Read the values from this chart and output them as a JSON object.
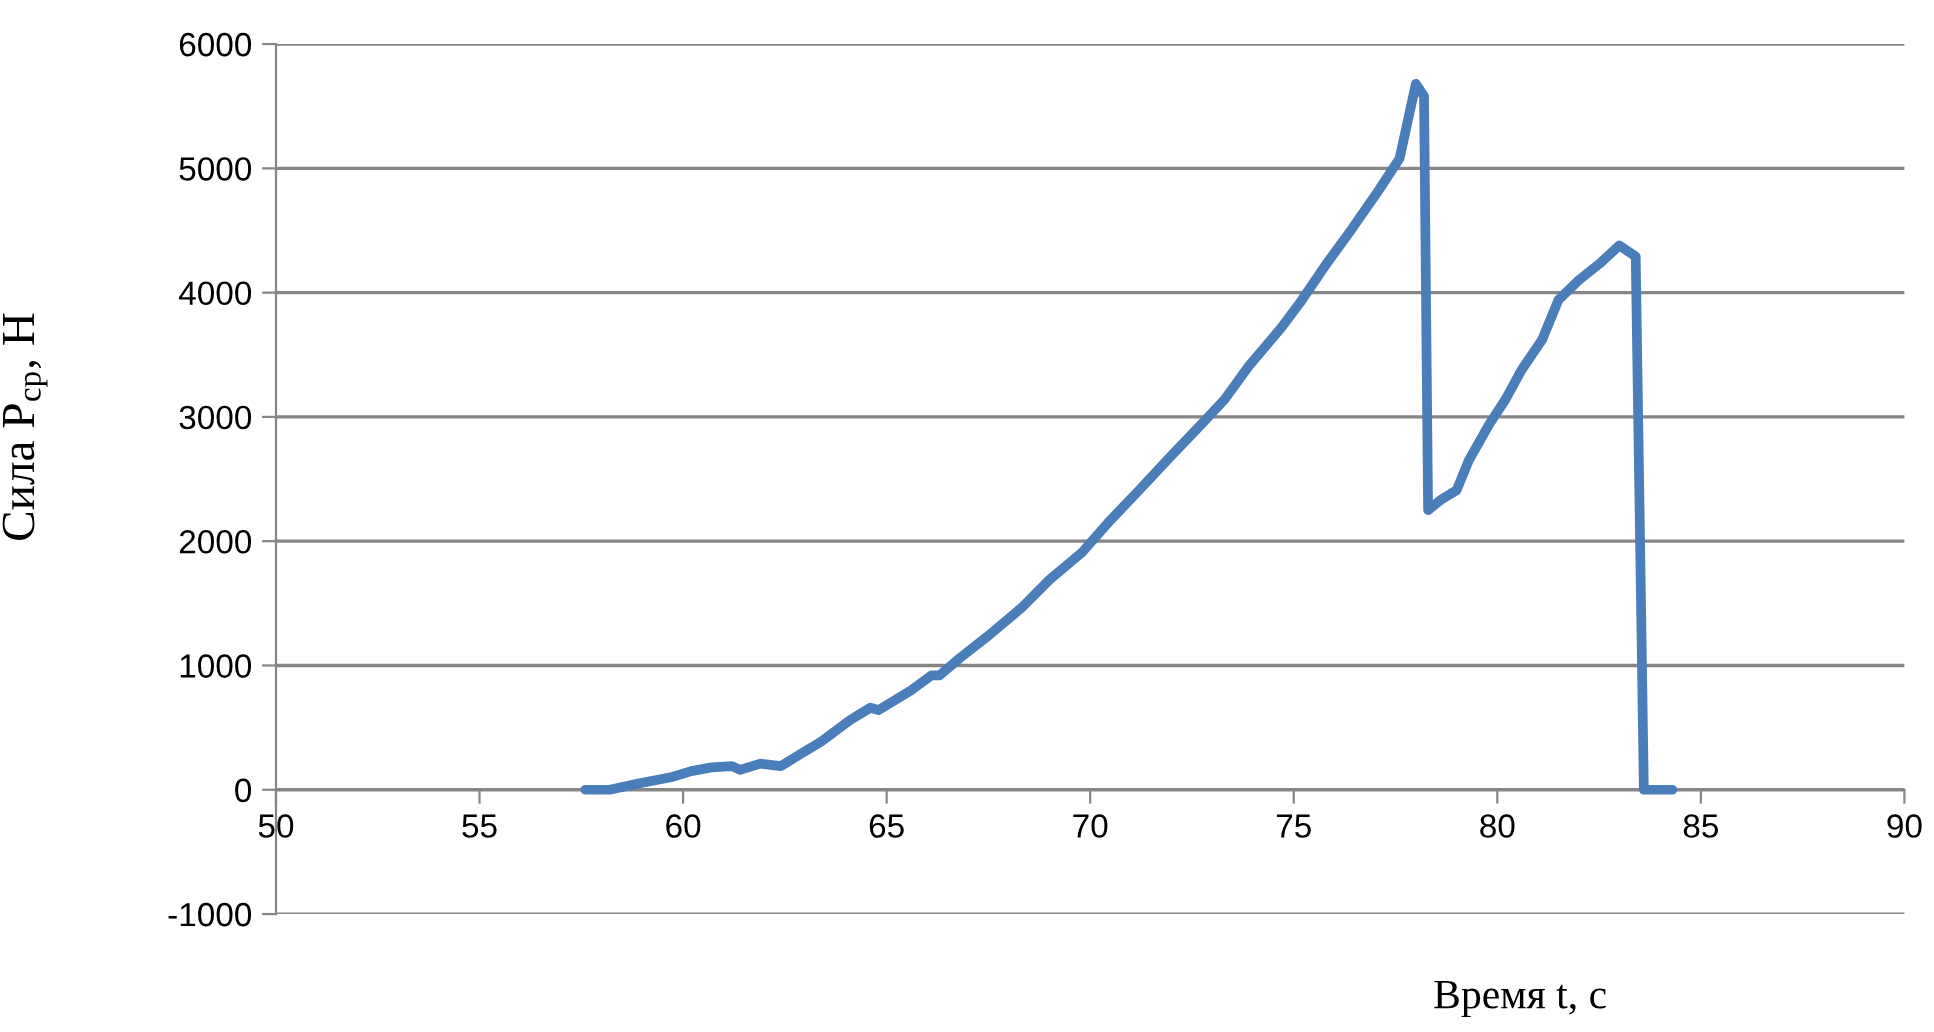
{
  "chart_data": {
    "type": "line",
    "xlabel": "Время t, с",
    "ylabel": "Сила P$_{ср}$, Н",
    "x": [
      57.6,
      58.2,
      58.9,
      59.7,
      60.2,
      60.7,
      61.2,
      61.4,
      61.9,
      62.4,
      62.9,
      63.4,
      64.1,
      64.6,
      64.8,
      65.6,
      66.1,
      66.3,
      66.8,
      67.5,
      68.3,
      69.0,
      69.8,
      70.5,
      71.2,
      72.0,
      72.7,
      73.3,
      73.9,
      74.7,
      75.2,
      75.8,
      76.4,
      77.1,
      77.6,
      78.0,
      78.2,
      78.3,
      78.6,
      79.0,
      79.3,
      79.8,
      80.2,
      80.6,
      81.1,
      81.5,
      82.0,
      82.5,
      83.0,
      83.4,
      83.6,
      84.3
    ],
    "series": [
      {
        "color": "#4a7ebb",
        "values": [
          0,
          0,
          50,
          100,
          150,
          180,
          190,
          160,
          210,
          190,
          290,
          390,
          560,
          660,
          640,
          800,
          920,
          920,
          1060,
          1240,
          1460,
          1690,
          1910,
          2170,
          2410,
          2690,
          2930,
          3140,
          3410,
          3720,
          3940,
          4230,
          4500,
          4830,
          5080,
          5680,
          5580,
          2250,
          2330,
          2410,
          2650,
          2940,
          3140,
          3380,
          3620,
          3940,
          4100,
          4230,
          4380,
          4290,
          0,
          0
        ]
      }
    ],
    "xlim": [
      50,
      90
    ],
    "xticks": [
      50,
      55,
      60,
      65,
      70,
      75,
      80,
      85,
      90
    ],
    "ylim": [
      -1000,
      6000
    ],
    "yticks": [
      -1000,
      0,
      1000,
      2000,
      3000,
      4000,
      5000,
      6000
    ],
    "grid": "y",
    "legend": false,
    "marker": "none",
    "line_style": "solid"
  }
}
